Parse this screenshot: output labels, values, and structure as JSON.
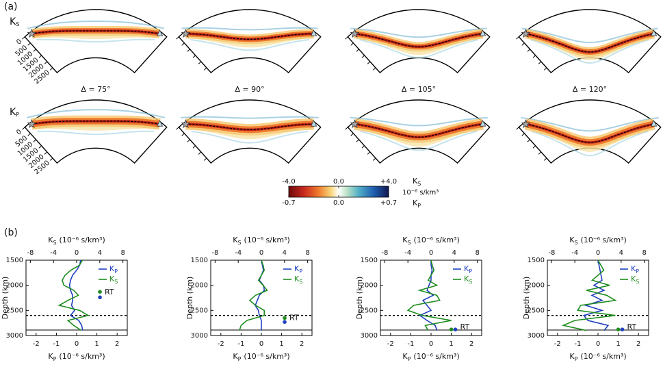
{
  "panel_a": {
    "label": "(a)",
    "rows": [
      {
        "symbol": "K",
        "subscript": "S"
      },
      {
        "symbol": "K",
        "subscript": "P"
      }
    ],
    "distances": [
      "Δ = 75°",
      "Δ = 90°",
      "Δ = 105°",
      "Δ = 120°"
    ],
    "depth_ticks": [
      0,
      500,
      1000,
      1500,
      2000,
      2500
    ],
    "colorbar": {
      "ks_label": {
        "symbol": "K",
        "subscript": "S"
      },
      "kp_label": {
        "symbol": "K",
        "subscript": "P"
      },
      "unit": "10⁻⁶ s/km³",
      "ks_lim": [
        -4,
        4
      ],
      "kp_lim": [
        -0.7,
        0.7
      ],
      "ks_ticks": [
        {
          "value": -4,
          "label": "-4.0"
        },
        {
          "value": 0,
          "label": "0.0"
        },
        {
          "value": 4,
          "label": "+4.0"
        }
      ],
      "kp_ticks": [
        {
          "value": -0.7,
          "label": "-0.7"
        },
        {
          "value": 0,
          "label": "0.0"
        },
        {
          "value": 0.7,
          "label": "+0.7"
        }
      ]
    }
  },
  "panel_b_label": "(b)",
  "chart_data": [
    {
      "type": "line",
      "x2label": {
        "symbol": "K",
        "subscript": "S",
        "unit": "(10⁻⁶ s/km³)"
      },
      "xlabel": {
        "symbol": "K",
        "subscript": "P",
        "unit": "(10⁻⁶ s/km³)"
      },
      "ylabel": "Depth (km)",
      "xlim": [
        -2.5,
        2.5
      ],
      "xticks": [
        -2,
        -1,
        0,
        1,
        2
      ],
      "x2lim": [
        -8.75,
        8.75
      ],
      "x2ticks": [
        -8,
        -4,
        0,
        4,
        8
      ],
      "ylim": [
        1500,
        3000
      ],
      "yticks": [
        1500,
        2000,
        2500,
        3000
      ],
      "y_inverted": true,
      "y": [
        1500,
        1600,
        1700,
        1800,
        1900,
        2000,
        2100,
        2200,
        2300,
        2400,
        2500,
        2600,
        2700,
        2800,
        2900
      ],
      "series": [
        {
          "name": {
            "symbol": "K",
            "subscript": "P"
          },
          "color": "#1f3fbf",
          "axis": "x",
          "values": [
            0.2,
            0.15,
            0.0,
            -0.2,
            -0.3,
            -0.35,
            -0.3,
            -0.2,
            -0.2,
            -0.25,
            -0.1,
            -0.3,
            0.1,
            0.25,
            0.3
          ]
        },
        {
          "name": {
            "symbol": "K",
            "subscript": "S"
          },
          "color": "#1e8c1e",
          "axis": "x2",
          "values": [
            1.0,
            0.5,
            -1.0,
            -2.0,
            -2.5,
            -2.2,
            -0.5,
            0.3,
            -1.5,
            -3.0,
            0.5,
            2.0,
            -1.5,
            -0.5,
            0.8
          ]
        }
      ],
      "hlines": [
        {
          "value": 2600,
          "style": "dashed"
        },
        {
          "value": 2891,
          "style": "solid"
        }
      ],
      "markers": {
        "label": "RT",
        "points": [
          {
            "color": "#1e8c1e",
            "x": 1.15,
            "y": 2130
          },
          {
            "color": "#1f3fbf",
            "x": 1.15,
            "y": 2240
          }
        ]
      }
    },
    {
      "type": "line",
      "x2label": {
        "symbol": "K",
        "subscript": "S",
        "unit": "(10⁻⁶ s/km³)"
      },
      "xlabel": {
        "symbol": "K",
        "subscript": "P",
        "unit": "(10⁻⁶ s/km³)"
      },
      "ylabel": "Depth (km)",
      "xlim": [
        -2.5,
        2.5
      ],
      "xticks": [
        -2,
        -1,
        0,
        1,
        2
      ],
      "x2lim": [
        -8.75,
        8.75
      ],
      "x2ticks": [
        -8,
        -4,
        0,
        4,
        8
      ],
      "ylim": [
        1500,
        3000
      ],
      "yticks": [
        1500,
        2000,
        2500,
        3000
      ],
      "y_inverted": true,
      "y": [
        1500,
        1600,
        1700,
        1800,
        1900,
        2000,
        2100,
        2200,
        2300,
        2400,
        2500,
        2600,
        2700,
        2800,
        2900
      ],
      "series": [
        {
          "name": {
            "symbol": "K",
            "subscript": "P"
          },
          "color": "#1f3fbf",
          "axis": "x",
          "values": [
            0.0,
            0.05,
            0.1,
            0.0,
            -0.1,
            0.1,
            0.15,
            -0.1,
            -0.2,
            -0.3,
            -0.15,
            -0.1,
            0.0,
            0.0,
            0.0
          ]
        },
        {
          "name": {
            "symbol": "K",
            "subscript": "S"
          },
          "color": "#1e8c1e",
          "axis": "x2",
          "values": [
            0.0,
            0.3,
            0.5,
            0.0,
            -0.5,
            0.3,
            1.0,
            -1.0,
            -2.0,
            -1.0,
            0.5,
            0.5,
            -2.5,
            -3.5,
            -3.8
          ]
        }
      ],
      "hlines": [
        {
          "value": 2600,
          "style": "dashed"
        },
        {
          "value": 2891,
          "style": "solid"
        }
      ],
      "markers": {
        "label": "RT",
        "points": [
          {
            "color": "#1e8c1e",
            "x": 1.15,
            "y": 2650
          },
          {
            "color": "#1f3fbf",
            "x": 1.15,
            "y": 2730
          }
        ]
      }
    },
    {
      "type": "line",
      "x2label": {
        "symbol": "K",
        "subscript": "S",
        "unit": "(10⁻⁶ s/km³)"
      },
      "xlabel": {
        "symbol": "K",
        "subscript": "P",
        "unit": "(10⁻⁶ s/km³)"
      },
      "ylabel": "Depth (km)",
      "xlim": [
        -2.5,
        2.5
      ],
      "xticks": [
        -2,
        -1,
        0,
        1,
        2
      ],
      "x2lim": [
        -8.75,
        8.75
      ],
      "x2ticks": [
        -8,
        -4,
        0,
        4,
        8
      ],
      "ylim": [
        1500,
        3000
      ],
      "yticks": [
        1500,
        2000,
        2500,
        3000
      ],
      "y_inverted": true,
      "y": [
        1500,
        1600,
        1700,
        1800,
        1900,
        2000,
        2100,
        2200,
        2300,
        2400,
        2500,
        2600,
        2700,
        2800,
        2900
      ],
      "series": [
        {
          "name": {
            "symbol": "K",
            "subscript": "P"
          },
          "color": "#1f3fbf",
          "axis": "x",
          "values": [
            0.0,
            0.0,
            0.05,
            0.0,
            0.0,
            -0.1,
            -0.2,
            0.1,
            -0.4,
            -0.2,
            0.0,
            -0.55,
            -0.2,
            0.2,
            0.3
          ]
        },
        {
          "name": {
            "symbol": "K",
            "subscript": "S"
          },
          "color": "#1e8c1e",
          "axis": "x2",
          "values": [
            0.0,
            0.2,
            0.5,
            0.0,
            -0.5,
            1.0,
            -2.0,
            1.0,
            1.5,
            -3.0,
            -4.0,
            -1.5,
            3.5,
            -1.0,
            -0.5
          ]
        }
      ],
      "hlines": [
        {
          "value": 2600,
          "style": "dashed"
        },
        {
          "value": 2891,
          "style": "solid"
        }
      ],
      "markers": {
        "label": "RT",
        "points": [
          {
            "color": "#1e8c1e",
            "x": 1.0,
            "y": 2880
          },
          {
            "color": "#1f3fbf",
            "x": 1.2,
            "y": 2880
          }
        ]
      }
    },
    {
      "type": "line",
      "x2label": {
        "symbol": "K",
        "subscript": "S",
        "unit": "(10⁻⁶ s/km³)"
      },
      "xlabel": {
        "symbol": "K",
        "subscript": "P",
        "unit": "(10⁻⁶ s/km³)"
      },
      "ylabel": "Depth (km)",
      "xlim": [
        -2.5,
        2.5
      ],
      "xticks": [
        -2,
        -1,
        0,
        1,
        2
      ],
      "x2lim": [
        -8.75,
        8.75
      ],
      "x2ticks": [
        -8,
        -4,
        0,
        4,
        8
      ],
      "ylim": [
        1500,
        3000
      ],
      "yticks": [
        1500,
        2000,
        2500,
        3000
      ],
      "y_inverted": true,
      "y": [
        1500,
        1600,
        1700,
        1800,
        1900,
        2000,
        2100,
        2200,
        2300,
        2400,
        2500,
        2600,
        2700,
        2800,
        2900
      ],
      "series": [
        {
          "name": {
            "symbol": "K",
            "subscript": "P"
          },
          "color": "#1f3fbf",
          "axis": "x",
          "values": [
            0.0,
            0.05,
            0.1,
            0.15,
            0.2,
            -0.2,
            0.3,
            -0.3,
            0.2,
            -0.6,
            0.2,
            -0.7,
            -0.5,
            0.5,
            0.3
          ]
        },
        {
          "name": {
            "symbol": "K",
            "subscript": "S"
          },
          "color": "#1e8c1e",
          "axis": "x2",
          "values": [
            0.0,
            0.5,
            1.0,
            0.0,
            -1.0,
            2.0,
            -2.0,
            1.5,
            3.0,
            -3.0,
            -3.5,
            3.0,
            -4.0,
            -6.0,
            -2.0
          ]
        }
      ],
      "hlines": [
        {
          "value": 2600,
          "style": "dashed"
        },
        {
          "value": 2891,
          "style": "solid"
        }
      ],
      "markers": {
        "label": "RT",
        "points": [
          {
            "color": "#1e8c1e",
            "x": 1.0,
            "y": 2880
          },
          {
            "color": "#1f3fbf",
            "x": 1.2,
            "y": 2880
          }
        ]
      }
    }
  ]
}
